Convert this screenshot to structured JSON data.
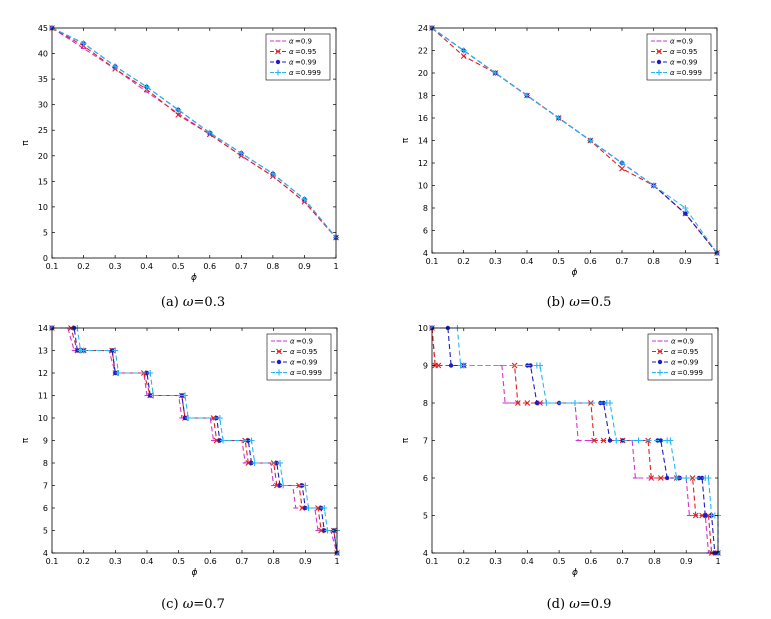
{
  "captions": [
    {
      "label": "(a)",
      "symbol": "ω",
      "value": "=0.3"
    },
    {
      "label": "(b)",
      "symbol": "ω",
      "value": "=0.5"
    },
    {
      "label": "(c)",
      "symbol": "ω",
      "value": "=0.7"
    },
    {
      "label": "(d)",
      "symbol": "ω",
      "value": "=0.9"
    }
  ],
  "legend": {
    "symbol": "α",
    "entries": [
      "=0.9",
      "=0.95",
      "=0.99",
      "=0.999"
    ]
  },
  "series_colors": [
    "#d633d6",
    "#e02020",
    "#1d1dc4",
    "#2ab6f2"
  ],
  "series_markers": [
    "dash",
    "x",
    "dot",
    "plus"
  ],
  "chart_data": [
    {
      "type": "line",
      "title": "(a) ω=0.3",
      "xlabel": "ϕ",
      "ylabel": "π",
      "xlim": [
        0.1,
        1.0
      ],
      "ylim": [
        0,
        45
      ],
      "xticks": [
        "0.1",
        "0.2",
        "0.3",
        "0.4",
        "0.5",
        "0.6",
        "0.7",
        "0.8",
        "0.9",
        "1"
      ],
      "yticks": [
        "0",
        "5",
        "10",
        "15",
        "20",
        "25",
        "30",
        "35",
        "40",
        "45"
      ],
      "legend_loc": "top-right",
      "series": [
        {
          "name": "α=0.9",
          "x": [
            0.1,
            0.2,
            0.3,
            0.4,
            0.5,
            0.6,
            0.7,
            0.8,
            0.9,
            1.0
          ],
          "values": [
            45,
            41,
            37,
            32.5,
            28.3,
            24.2,
            20,
            16,
            11,
            4
          ]
        },
        {
          "name": "α=0.95",
          "x": [
            0.1,
            0.2,
            0.3,
            0.4,
            0.5,
            0.6,
            0.7,
            0.8,
            0.9,
            1.0
          ],
          "values": [
            45,
            41.5,
            37,
            33,
            28,
            24.2,
            20,
            16,
            11,
            4
          ]
        },
        {
          "name": "α=0.99",
          "x": [
            0.1,
            0.2,
            0.3,
            0.4,
            0.5,
            0.6,
            0.7,
            0.8,
            0.9,
            1.0
          ],
          "values": [
            45,
            42,
            37.5,
            33.5,
            29,
            24.5,
            20.5,
            16.5,
            11.5,
            4
          ]
        },
        {
          "name": "α=0.999",
          "x": [
            0.1,
            0.2,
            0.3,
            0.4,
            0.5,
            0.6,
            0.7,
            0.8,
            0.9,
            1.0
          ],
          "values": [
            45,
            42,
            37.5,
            33.5,
            29,
            24.5,
            20.5,
            16.5,
            11.5,
            4
          ]
        }
      ]
    },
    {
      "type": "line",
      "title": "(b) ω=0.5",
      "xlabel": "ϕ",
      "ylabel": "π",
      "xlim": [
        0.1,
        1.0
      ],
      "ylim": [
        4,
        24
      ],
      "xticks": [
        "0.1",
        "0.2",
        "0.3",
        "0.4",
        "0.5",
        "0.6",
        "0.7",
        "0.8",
        "0.9",
        "1"
      ],
      "yticks": [
        "4",
        "6",
        "8",
        "10",
        "12",
        "14",
        "16",
        "18",
        "20",
        "22",
        "24"
      ],
      "legend_loc": "top-right",
      "series": [
        {
          "name": "α=0.9",
          "x": [
            0.1,
            0.2,
            0.3,
            0.4,
            0.5,
            0.6,
            0.7,
            0.8,
            0.9,
            1.0
          ],
          "values": [
            24,
            22,
            20,
            18,
            16,
            14,
            12,
            10,
            7.5,
            4
          ]
        },
        {
          "name": "α=0.95",
          "x": [
            0.1,
            0.2,
            0.3,
            0.4,
            0.5,
            0.6,
            0.7,
            0.8,
            0.9,
            1.0
          ],
          "values": [
            24,
            21.5,
            20,
            18,
            16,
            14,
            11.5,
            10,
            7.5,
            4
          ]
        },
        {
          "name": "α=0.99",
          "x": [
            0.1,
            0.2,
            0.3,
            0.4,
            0.5,
            0.6,
            0.7,
            0.8,
            0.9,
            1.0
          ],
          "values": [
            24,
            22,
            20,
            18,
            16,
            14,
            12,
            10,
            7.5,
            4
          ]
        },
        {
          "name": "α=0.999",
          "x": [
            0.1,
            0.2,
            0.3,
            0.4,
            0.5,
            0.6,
            0.7,
            0.8,
            0.9,
            1.0
          ],
          "values": [
            24,
            22,
            20,
            18,
            16,
            14,
            12,
            10,
            8,
            4
          ]
        }
      ]
    },
    {
      "type": "line",
      "title": "(c) ω=0.7",
      "xlabel": "ϕ",
      "ylabel": "π",
      "xlim": [
        0.1,
        1.0
      ],
      "ylim": [
        4,
        14
      ],
      "xticks": [
        "0.1",
        "0.2",
        "0.3",
        "0.4",
        "0.5",
        "0.6",
        "0.7",
        "0.8",
        "0.9",
        "1"
      ],
      "yticks": [
        "4",
        "5",
        "6",
        "7",
        "8",
        "9",
        "10",
        "11",
        "12",
        "13",
        "14"
      ],
      "legend_loc": "top-right",
      "series": [
        {
          "name": "α=0.9",
          "x": [
            0.1,
            0.15,
            0.17,
            0.2,
            0.28,
            0.3,
            0.39,
            0.4,
            0.5,
            0.51,
            0.6,
            0.61,
            0.7,
            0.71,
            0.79,
            0.8,
            0.86,
            0.87,
            0.93,
            0.94,
            0.98,
            1.0
          ],
          "values": [
            14,
            14,
            13,
            13,
            13,
            12,
            12,
            11,
            11,
            10,
            10,
            9,
            9,
            8,
            8,
            7,
            7,
            6,
            6,
            5,
            5,
            4
          ]
        },
        {
          "name": "α=0.95",
          "x": [
            0.1,
            0.16,
            0.18,
            0.2,
            0.29,
            0.3,
            0.39,
            0.41,
            0.51,
            0.52,
            0.61,
            0.62,
            0.71,
            0.72,
            0.8,
            0.81,
            0.88,
            0.89,
            0.94,
            0.95,
            0.99,
            1.0
          ],
          "values": [
            14,
            14,
            13,
            13,
            13,
            12,
            12,
            11,
            11,
            10,
            10,
            9,
            9,
            8,
            8,
            7,
            7,
            6,
            6,
            5,
            5,
            4
          ]
        },
        {
          "name": "α=0.99",
          "x": [
            0.1,
            0.17,
            0.18,
            0.2,
            0.29,
            0.3,
            0.4,
            0.41,
            0.51,
            0.52,
            0.62,
            0.63,
            0.72,
            0.73,
            0.81,
            0.82,
            0.89,
            0.9,
            0.95,
            0.96,
            0.99,
            1.0
          ],
          "values": [
            14,
            14,
            13,
            13,
            13,
            12,
            12,
            11,
            11,
            10,
            10,
            9,
            9,
            8,
            8,
            7,
            7,
            6,
            6,
            5,
            5,
            4
          ]
        },
        {
          "name": "α=0.999",
          "x": [
            0.1,
            0.18,
            0.19,
            0.2,
            0.3,
            0.31,
            0.41,
            0.42,
            0.52,
            0.53,
            0.63,
            0.64,
            0.73,
            0.74,
            0.82,
            0.83,
            0.9,
            0.91,
            0.96,
            0.97,
            1.0,
            1.0
          ],
          "values": [
            14,
            14,
            13,
            13,
            13,
            12,
            12,
            11,
            11,
            10,
            10,
            9,
            9,
            8,
            8,
            7,
            7,
            6,
            6,
            5,
            5,
            4
          ]
        }
      ]
    },
    {
      "type": "line",
      "title": "(d) ω=0.9",
      "xlabel": "ϕ",
      "ylabel": "π",
      "xlim": [
        0.1,
        1.0
      ],
      "ylim": [
        4,
        10
      ],
      "xticks": [
        "0.1",
        "0.2",
        "0.3",
        "0.4",
        "0.5",
        "0.6",
        "0.7",
        "0.8",
        "0.9",
        "1"
      ],
      "yticks": [
        "4",
        "5",
        "6",
        "7",
        "8",
        "9",
        "10"
      ],
      "legend_loc": "top-right",
      "series": [
        {
          "name": "α=0.9",
          "x": [
            0.1,
            0.11,
            0.12,
            0.2,
            0.32,
            0.33,
            0.36,
            0.44,
            0.55,
            0.56,
            0.6,
            0.64,
            0.73,
            0.74,
            0.79,
            0.82,
            0.9,
            0.91,
            0.93,
            0.96,
            0.97,
            1.0
          ],
          "values": [
            10,
            9,
            9,
            9,
            9,
            8,
            8,
            8,
            8,
            7,
            7,
            7,
            7,
            6,
            6,
            6,
            6,
            5,
            5,
            5,
            4,
            4
          ]
        },
        {
          "name": "α=0.95",
          "x": [
            0.1,
            0.11,
            0.12,
            0.2,
            0.36,
            0.37,
            0.4,
            0.44,
            0.6,
            0.61,
            0.64,
            0.7,
            0.78,
            0.79,
            0.82,
            0.87,
            0.92,
            0.93,
            0.95,
            0.97,
            0.98,
            1.0
          ],
          "values": [
            10,
            9,
            9,
            9,
            9,
            8,
            8,
            8,
            8,
            7,
            7,
            7,
            7,
            6,
            6,
            6,
            6,
            5,
            5,
            5,
            4,
            4
          ]
        },
        {
          "name": "α=0.99",
          "x": [
            0.1,
            0.15,
            0.16,
            0.2,
            0.4,
            0.41,
            0.43,
            0.5,
            0.63,
            0.64,
            0.66,
            0.7,
            0.81,
            0.82,
            0.84,
            0.88,
            0.94,
            0.95,
            0.96,
            0.98,
            0.99,
            1.0
          ],
          "values": [
            10,
            10,
            9,
            9,
            9,
            9,
            8,
            8,
            8,
            8,
            7,
            7,
            7,
            7,
            6,
            6,
            6,
            6,
            5,
            5,
            4,
            4
          ]
        },
        {
          "name": "α=0.999",
          "x": [
            0.1,
            0.18,
            0.19,
            0.2,
            0.43,
            0.44,
            0.46,
            0.55,
            0.65,
            0.66,
            0.68,
            0.75,
            0.84,
            0.85,
            0.87,
            0.9,
            0.96,
            0.97,
            0.98,
            0.99,
            1.0,
            1.0
          ],
          "values": [
            10,
            10,
            9,
            9,
            9,
            9,
            8,
            8,
            8,
            8,
            7,
            7,
            7,
            7,
            6,
            6,
            6,
            6,
            5,
            5,
            5,
            4
          ]
        }
      ]
    }
  ]
}
